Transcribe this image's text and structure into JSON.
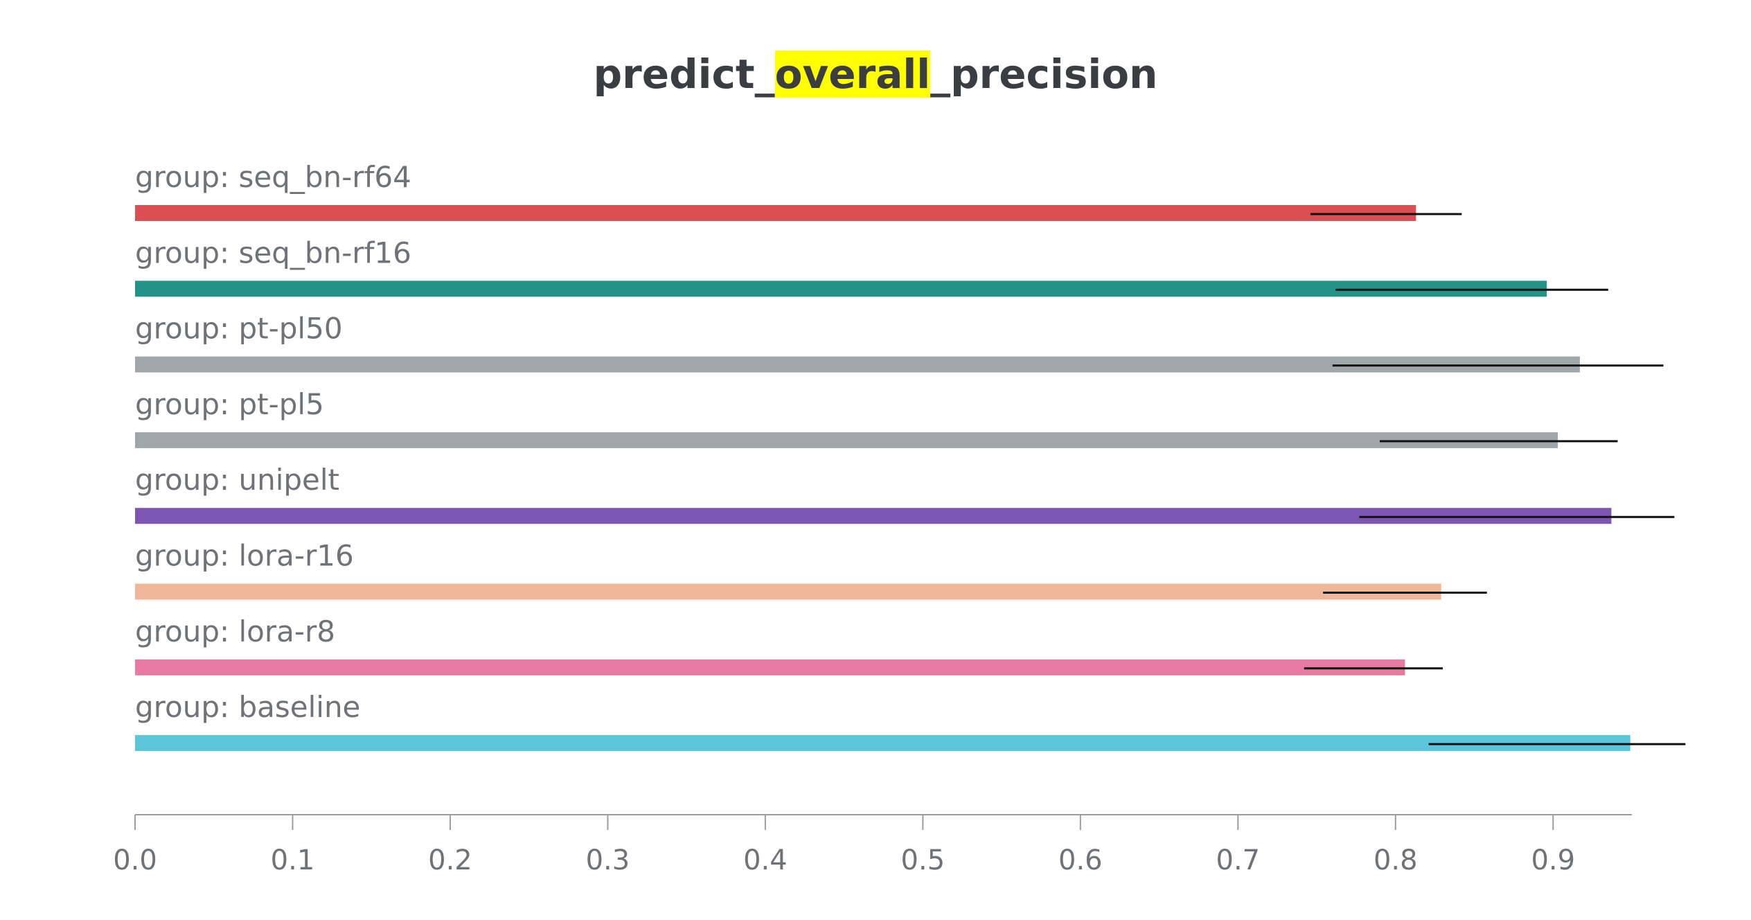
{
  "chart_data": {
    "type": "bar",
    "orientation": "horizontal",
    "title": {
      "prefix": "predict_",
      "highlight": "overall",
      "suffix": "_precision"
    },
    "title_highlight_color": "#ffff00",
    "xlabel": "",
    "ylabel": "",
    "xlim": [
      0,
      0.95
    ],
    "xticks": [
      "0.0",
      "0.1",
      "0.2",
      "0.3",
      "0.4",
      "0.5",
      "0.6",
      "0.7",
      "0.8",
      "0.9"
    ],
    "grid": false,
    "legend": "none",
    "categories": [
      "group: seq_bn-rf64",
      "group: seq_bn-rf16",
      "group: pt-pl50",
      "group: pt-pl5",
      "group: unipelt",
      "group: lora-r16",
      "group: lora-r8",
      "group: baseline"
    ],
    "values": [
      0.813,
      0.896,
      0.917,
      0.903,
      0.937,
      0.829,
      0.806,
      0.949
    ],
    "error_low": [
      0.746,
      0.762,
      0.76,
      0.79,
      0.777,
      0.754,
      0.742,
      0.821
    ],
    "error_high": [
      0.842,
      0.935,
      0.97,
      0.941,
      0.977,
      0.858,
      0.83,
      0.984
    ],
    "colors": [
      "#db4f52",
      "#229487",
      "#a0a7aa",
      "#a0a7aa",
      "#7d55b3",
      "#f0b899",
      "#e77aa0",
      "#5bc5da"
    ]
  }
}
